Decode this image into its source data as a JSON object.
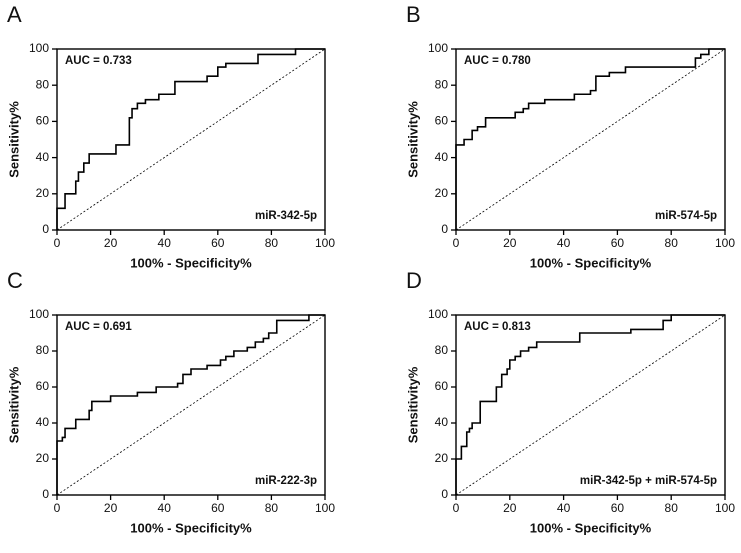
{
  "chart_data": [
    {
      "type": "line",
      "panel_label": "A",
      "annotation": "AUC = 0.733",
      "label": "miR-342-5p",
      "x_label": "100% - Specificity%",
      "y_label": "Sensitivity%",
      "color": "#000000",
      "xlim": [
        0,
        100
      ],
      "ylim": [
        0,
        100
      ],
      "xticks": [
        0,
        20,
        40,
        60,
        80,
        100
      ],
      "yticks": [
        0,
        20,
        40,
        60,
        80,
        100
      ],
      "x": [
        0,
        0,
        3,
        3,
        7,
        7,
        8,
        8,
        10,
        10,
        12,
        12,
        22,
        22,
        27,
        27,
        28,
        28,
        30,
        30,
        33,
        33,
        38,
        38,
        44,
        44,
        56,
        56,
        60,
        60,
        63,
        63,
        75,
        75,
        89,
        89,
        100
      ],
      "values": [
        0,
        12,
        12,
        20,
        20,
        27,
        27,
        32,
        32,
        37,
        37,
        42,
        42,
        47,
        47,
        62,
        62,
        67,
        67,
        70,
        70,
        72,
        72,
        75,
        75,
        82,
        82,
        85,
        85,
        90,
        90,
        92,
        92,
        97,
        97,
        100,
        100
      ]
    },
    {
      "type": "line",
      "panel_label": "B",
      "annotation": "AUC = 0.780",
      "label": "miR-574-5p",
      "x_label": "100% - Specificity%",
      "y_label": "Sensitivity%",
      "color": "#000000",
      "xlim": [
        0,
        100
      ],
      "ylim": [
        0,
        100
      ],
      "xticks": [
        0,
        20,
        40,
        60,
        80,
        100
      ],
      "yticks": [
        0,
        20,
        40,
        60,
        80,
        100
      ],
      "x": [
        0,
        0,
        3,
        3,
        6,
        6,
        8,
        8,
        11,
        11,
        22,
        22,
        25,
        25,
        27,
        27,
        33,
        33,
        44,
        44,
        50,
        50,
        52,
        52,
        57,
        57,
        63,
        63,
        89,
        89,
        91,
        91,
        94,
        94,
        100
      ],
      "values": [
        0,
        47,
        47,
        50,
        50,
        55,
        55,
        57,
        57,
        62,
        62,
        65,
        65,
        67,
        67,
        70,
        70,
        72,
        72,
        75,
        75,
        77,
        77,
        85,
        85,
        87,
        87,
        90,
        90,
        95,
        95,
        97,
        97,
        100,
        100
      ]
    },
    {
      "type": "line",
      "panel_label": "C",
      "annotation": "AUC = 0.691",
      "label": "miR-222-3p",
      "x_label": "100% - Specificity%",
      "y_label": "Sensitivity%",
      "color": "#000000",
      "xlim": [
        0,
        100
      ],
      "ylim": [
        0,
        100
      ],
      "xticks": [
        0,
        20,
        40,
        60,
        80,
        100
      ],
      "yticks": [
        0,
        20,
        40,
        60,
        80,
        100
      ],
      "x": [
        0,
        0,
        2,
        2,
        3,
        3,
        7,
        7,
        12,
        12,
        13,
        13,
        20,
        20,
        30,
        30,
        37,
        37,
        45,
        45,
        47,
        47,
        50,
        50,
        56,
        56,
        61,
        61,
        63,
        63,
        66,
        66,
        71,
        71,
        74,
        74,
        77,
        77,
        79,
        79,
        82,
        82,
        94,
        94,
        100
      ],
      "values": [
        0,
        30,
        30,
        32,
        32,
        37,
        37,
        42,
        42,
        47,
        47,
        52,
        52,
        55,
        55,
        57,
        57,
        60,
        60,
        62,
        62,
        67,
        67,
        70,
        70,
        72,
        72,
        75,
        75,
        77,
        77,
        80,
        80,
        82,
        82,
        85,
        85,
        87,
        87,
        90,
        90,
        97,
        97,
        100,
        100
      ]
    },
    {
      "type": "line",
      "panel_label": "D",
      "annotation": "AUC = 0.813",
      "label": "miR-342-5p + miR-574-5p",
      "x_label": "100% - Specificity%",
      "y_label": "Sensitivity%",
      "color": "#000000",
      "xlim": [
        0,
        100
      ],
      "ylim": [
        0,
        100
      ],
      "xticks": [
        0,
        20,
        40,
        60,
        80,
        100
      ],
      "yticks": [
        0,
        20,
        40,
        60,
        80,
        100
      ],
      "x": [
        0,
        0,
        2,
        2,
        4,
        4,
        5,
        5,
        6,
        6,
        9,
        9,
        15,
        15,
        17,
        17,
        19,
        19,
        20,
        20,
        22,
        22,
        24,
        24,
        27,
        27,
        30,
        30,
        46,
        46,
        65,
        65,
        77,
        77,
        80,
        80,
        100
      ],
      "values": [
        0,
        20,
        20,
        27,
        27,
        35,
        35,
        37,
        37,
        40,
        40,
        52,
        52,
        60,
        60,
        67,
        67,
        70,
        70,
        75,
        75,
        77,
        77,
        80,
        80,
        82,
        82,
        85,
        85,
        90,
        90,
        92,
        92,
        97,
        97,
        100,
        100
      ]
    }
  ]
}
